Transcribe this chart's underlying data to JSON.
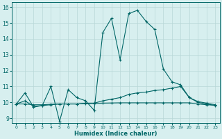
{
  "xlabel": "Humidex (Indice chaleur)",
  "background_color": "#d7efef",
  "line_color": "#006666",
  "grid_color": "#b8d8d8",
  "xlim": [
    -0.5,
    23.5
  ],
  "ylim": [
    8.7,
    16.3
  ],
  "yticks": [
    9,
    10,
    11,
    12,
    13,
    14,
    15,
    16
  ],
  "xticks": [
    0,
    1,
    2,
    3,
    4,
    5,
    6,
    7,
    8,
    9,
    10,
    11,
    12,
    13,
    14,
    15,
    16,
    17,
    18,
    19,
    20,
    21,
    22,
    23
  ],
  "series": [
    {
      "x": [
        0,
        1,
        2,
        3,
        4,
        5,
        6,
        7,
        8,
        9,
        10,
        11,
        12,
        13,
        14,
        15,
        16,
        17,
        18,
        19,
        20,
        21,
        22,
        23
      ],
      "y": [
        9.9,
        10.6,
        9.7,
        9.8,
        11.0,
        8.8,
        10.8,
        10.3,
        10.1,
        9.5,
        14.4,
        15.3,
        12.7,
        15.6,
        15.8,
        15.1,
        14.6,
        12.1,
        11.3,
        11.1,
        10.3,
        10.0,
        9.9,
        9.8
      ]
    },
    {
      "x": [
        0,
        1,
        2,
        3,
        4,
        5,
        6,
        7,
        8,
        9,
        10,
        11,
        12,
        13,
        14,
        15,
        16,
        17,
        18,
        19,
        20,
        21,
        22,
        23
      ],
      "y": [
        9.9,
        10.1,
        9.75,
        9.8,
        9.85,
        9.9,
        9.9,
        9.9,
        9.95,
        9.95,
        10.1,
        10.2,
        10.3,
        10.5,
        10.6,
        10.65,
        10.75,
        10.8,
        10.9,
        11.0,
        10.3,
        10.05,
        9.95,
        9.85
      ]
    },
    {
      "x": [
        0,
        1,
        2,
        3,
        4,
        5,
        6,
        7,
        8,
        9,
        10,
        11,
        12,
        13,
        14,
        15,
        16,
        17,
        18,
        19,
        20,
        21,
        22,
        23
      ],
      "y": [
        9.9,
        9.9,
        9.85,
        9.85,
        9.88,
        9.9,
        9.9,
        9.9,
        9.92,
        9.93,
        9.95,
        9.96,
        9.97,
        9.97,
        9.97,
        9.97,
        9.97,
        9.97,
        9.97,
        9.97,
        9.97,
        9.9,
        9.85,
        9.82
      ]
    }
  ]
}
